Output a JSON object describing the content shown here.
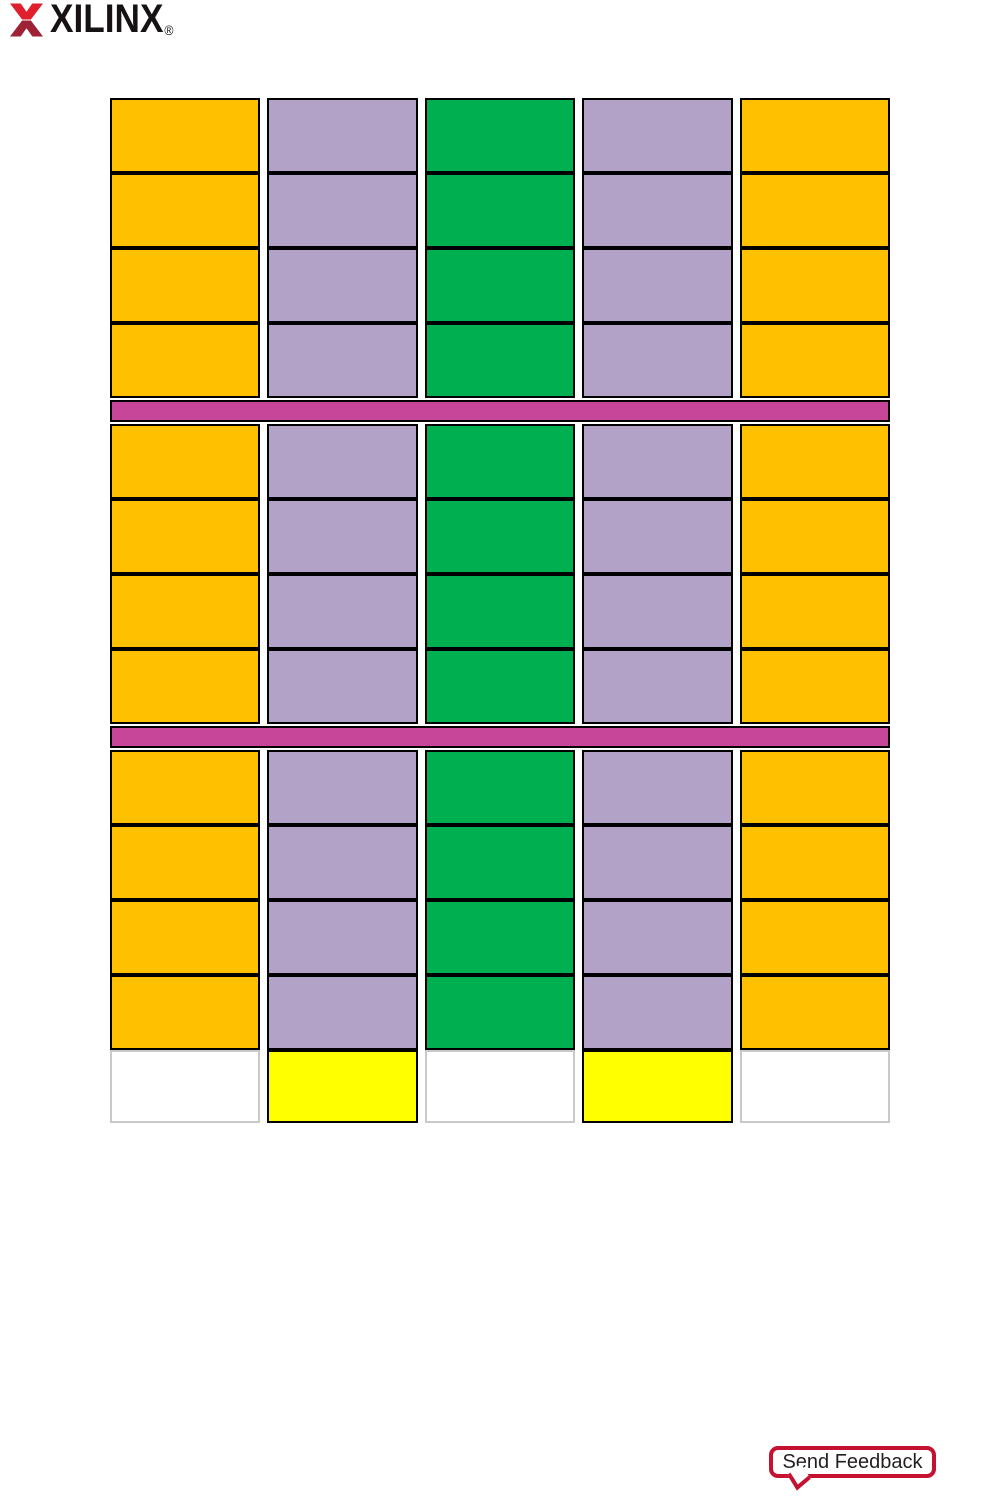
{
  "brand": {
    "wordmark": "XILINX",
    "registered": "®",
    "x_bright": "#E01F2D",
    "x_dark": "#9D2235",
    "text_color": "#161214"
  },
  "feedback": {
    "label": "Send Feedback"
  },
  "diagram": {
    "palette": {
      "orange": "#FFC000",
      "purple": "#B2A2C7",
      "green": "#00B050",
      "magenta": "#C84699",
      "yellow": "#FFFF00",
      "white": "#FFFFFF",
      "border": "#000000",
      "light_border": "#C9C9C9",
      "feedback_red": "#C41230"
    },
    "columns": [
      "orange",
      "purple",
      "green",
      "purple",
      "orange"
    ],
    "row_groups": [
      {
        "type": "cells",
        "rows": 4
      },
      {
        "type": "band",
        "color": "magenta"
      },
      {
        "type": "cells",
        "rows": 4
      },
      {
        "type": "band",
        "color": "magenta"
      },
      {
        "type": "cells",
        "rows": 4
      },
      {
        "type": "footer",
        "pattern": [
          "white",
          "yellow",
          "white",
          "yellow",
          "white"
        ]
      }
    ]
  }
}
